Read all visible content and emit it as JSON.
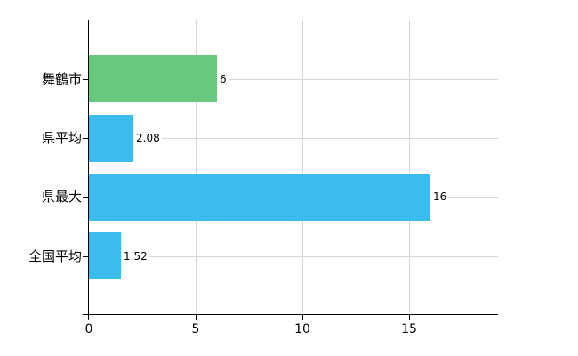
{
  "chart_data": {
    "type": "bar",
    "orientation": "horizontal",
    "title": "",
    "categories": [
      "舞鶴市",
      "県平均",
      "県最大",
      "全国平均"
    ],
    "values": [
      6,
      2.08,
      16,
      1.52
    ],
    "value_labels": [
      "6",
      "2.08",
      "16",
      "1.52"
    ],
    "bar_colors": [
      "#66c97e",
      "#3bbcee",
      "#3bbcee",
      "#3bbcee"
    ],
    "xlim": [
      0,
      19.17
    ],
    "xticks": [
      0,
      5,
      10,
      15
    ],
    "xtick_labels": [
      "0",
      "5",
      "10",
      "15"
    ],
    "ylabel": "",
    "xlabel": "",
    "legend": "none",
    "grid": {
      "horizontal_row_lines": true,
      "vertical_tick_lines": true,
      "top_border_dashed": true
    },
    "colors": {
      "axis": "#000000",
      "grid_horizontal": "#d6d9d4",
      "grid_vertical": "#d9d4d9",
      "top_border": "#d2cbd2",
      "background": "#ffffff",
      "text": "#000000"
    }
  }
}
